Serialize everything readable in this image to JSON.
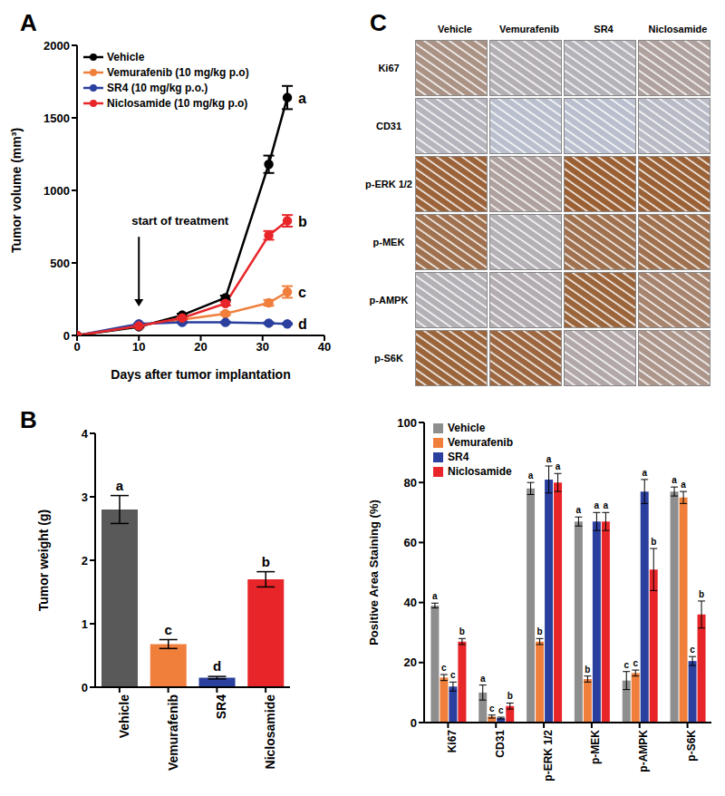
{
  "chart_data": [
    {
      "panel": "A",
      "type": "line",
      "x_label": "Days after tumor implantation",
      "y_label": "Tumor volume (mm³)",
      "x": [
        0,
        10,
        17,
        24,
        31,
        34
      ],
      "xlim": [
        0,
        40
      ],
      "xticks": [
        0,
        10,
        20,
        30,
        40
      ],
      "ylim": [
        0,
        2000
      ],
      "yticks": [
        0,
        500,
        1000,
        1500,
        2000
      ],
      "legend": "upper left",
      "marker": "circle",
      "annotations": [
        {
          "text": "start of treatment",
          "x": 10
        }
      ],
      "series": [
        {
          "name": "Vehicle",
          "color": "#000000",
          "values": [
            0,
            60,
            140,
            260,
            1180,
            1640
          ],
          "errors": [
            0,
            5,
            10,
            15,
            60,
            80
          ],
          "letter": "a"
        },
        {
          "name": "Vemurafenib (10 mg/kg p.o)",
          "color": "#f07f3c",
          "values": [
            0,
            70,
            110,
            150,
            225,
            300
          ],
          "errors": [
            0,
            5,
            8,
            10,
            20,
            40
          ],
          "letter": "c"
        },
        {
          "name": "SR4 (10 mg/kg p.o.)",
          "color": "#2b3f9e",
          "values": [
            0,
            80,
            90,
            90,
            85,
            80
          ],
          "errors": [
            0,
            5,
            5,
            5,
            5,
            5
          ],
          "letter": "d"
        },
        {
          "name": "Niclosamide (10 mg/kg p.o)",
          "color": "#e8262a",
          "values": [
            0,
            65,
            120,
            220,
            690,
            790
          ],
          "errors": [
            0,
            5,
            8,
            12,
            30,
            40
          ],
          "letter": "b"
        }
      ]
    },
    {
      "panel": "B",
      "type": "bar",
      "y_label": "Tumor weight (g)",
      "categories": [
        "Vehicle",
        "Vemurafenib",
        "SR4",
        "Niclosamide"
      ],
      "values": [
        2.8,
        0.68,
        0.15,
        1.7
      ],
      "errors": [
        0.22,
        0.07,
        0.02,
        0.12
      ],
      "colors": [
        "#595959",
        "#f07f3c",
        "#2b3f9e",
        "#e8262a"
      ],
      "letters": [
        "a",
        "c",
        "d",
        "b"
      ],
      "ylim": [
        0,
        4
      ],
      "yticks": [
        0,
        1,
        2,
        3,
        4
      ]
    },
    {
      "panel": "C",
      "type": "bar",
      "y_label": "Positive Area Staining (%)",
      "categories": [
        "Ki67",
        "CD31",
        "p-ERK 1/2",
        "p-MEK",
        "p-AMPK",
        "p-S6K"
      ],
      "ylim": [
        0,
        100
      ],
      "yticks": [
        0,
        20,
        40,
        60,
        80,
        100
      ],
      "legend": "upper left",
      "series": [
        {
          "name": "Vehicle",
          "color": "#8e8e8e",
          "values": [
            39,
            10,
            78,
            67,
            14,
            77
          ],
          "errors": [
            0.8,
            2.5,
            2,
            1.5,
            3,
            1.5
          ],
          "letters": [
            "a",
            "a",
            "a",
            "a",
            "c",
            "a"
          ]
        },
        {
          "name": "Vemurafenib",
          "color": "#f07f3c",
          "values": [
            15,
            2,
            27,
            14.5,
            16.5,
            75
          ],
          "errors": [
            1,
            0.5,
            1,
            1,
            1,
            2
          ],
          "letters": [
            "c",
            "c",
            "b",
            "b",
            "c",
            "a"
          ]
        },
        {
          "name": "SR4",
          "color": "#2b3f9e",
          "values": [
            12,
            1.5,
            81,
            67,
            77,
            20.5
          ],
          "errors": [
            1.5,
            0.3,
            4.5,
            3,
            4,
            1.5
          ],
          "letters": [
            "c",
            "c",
            "a",
            "a",
            "a",
            "c"
          ]
        },
        {
          "name": "Niclosamide",
          "color": "#e8262a",
          "values": [
            27,
            5.5,
            80,
            67,
            51,
            36
          ],
          "errors": [
            1,
            1,
            3,
            3,
            7,
            4.5
          ],
          "letters": [
            "b",
            "b",
            "a",
            "a",
            "b",
            "b"
          ]
        }
      ]
    }
  ]
}
